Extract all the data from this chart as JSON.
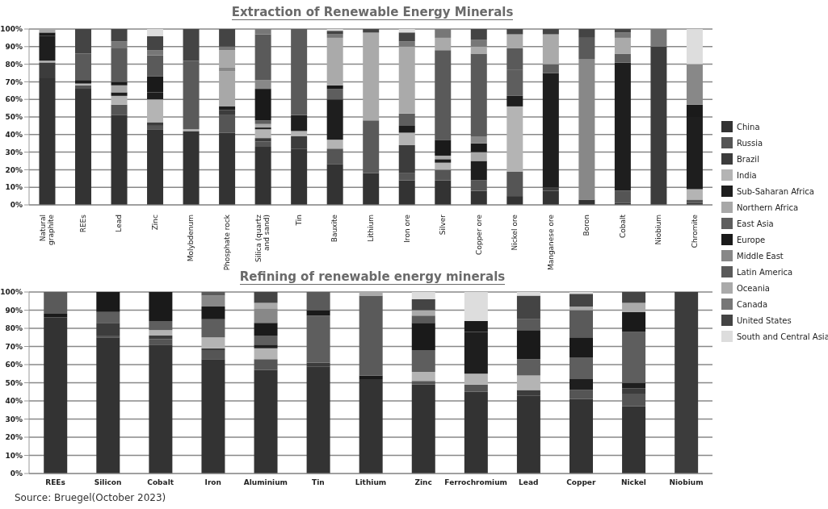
{
  "chart_data": [
    {
      "type": "bar",
      "title": "Extraction of Renewable Energy Minerals",
      "stacked": true,
      "grid": "y",
      "legend": "right",
      "categories": [
        "Natural graphite",
        "REEs",
        "Lead",
        "Zinc",
        "Molybdenum",
        "Phosphate rock",
        "Silica (quartz and sand)",
        "Tin",
        "Bauxite",
        "Lithium",
        "Iron ore",
        "Silver",
        "Copper ore",
        "Nickel ore",
        "Manganese ore",
        "Boron",
        "Cobalt",
        "Niobium",
        "Chromite"
      ],
      "ylim": [
        0,
        100
      ],
      "yticks": [
        {
          "value": 0,
          "label": "0%"
        },
        {
          "value": 10,
          "label": "10%"
        },
        {
          "value": 20,
          "label": "20%"
        },
        {
          "value": 30,
          "label": "30%"
        },
        {
          "value": 40,
          "label": "40%"
        },
        {
          "value": 50,
          "label": "50%"
        },
        {
          "value": 60,
          "label": "60%"
        },
        {
          "value": 70,
          "label": "70%"
        },
        {
          "value": 80,
          "label": "80%"
        },
        {
          "value": 90,
          "label": "90%"
        },
        {
          "value": 100,
          "label": "100%"
        }
      ],
      "series": [
        {
          "name": "China",
          "color": "#333333",
          "values": [
            72,
            66,
            51,
            43,
            42,
            41,
            33,
            32,
            23,
            18,
            14,
            14,
            8,
            5,
            8,
            3,
            1,
            0,
            1
          ]
        },
        {
          "name": "Russia",
          "color": "#555555",
          "values": [
            0,
            2,
            6,
            2,
            0,
            10,
            3,
            0,
            9,
            0,
            4,
            6,
            6,
            14,
            0,
            0,
            7,
            0,
            2
          ]
        },
        {
          "name": "Brazil",
          "color": "#3c3c3c",
          "values": [
            9,
            0,
            0,
            2,
            0,
            3,
            2,
            7,
            0,
            0,
            16,
            0,
            0,
            0,
            2,
            0,
            0,
            90,
            0
          ]
        },
        {
          "name": "India",
          "color": "#b4b4b4",
          "values": [
            1,
            1,
            5,
            13,
            1,
            0,
            5,
            3,
            5,
            0,
            7,
            4,
            0,
            37,
            0,
            0,
            0,
            0,
            6
          ]
        },
        {
          "name": "Sub-Saharan Africa",
          "color": "#1e1e1e",
          "values": [
            14,
            2,
            2,
            4,
            0,
            2,
            1,
            9,
            23,
            0,
            4,
            2,
            11,
            6,
            65,
            0,
            73,
            0,
            41
          ]
        },
        {
          "name": "Northern Africa",
          "color": "#a8a8a8",
          "values": [
            0,
            0,
            4,
            0,
            0,
            20,
            2,
            0,
            0,
            0,
            0,
            2,
            5,
            0,
            0,
            0,
            0,
            0,
            0
          ]
        },
        {
          "name": "East Asia",
          "color": "#5e5e5e",
          "values": [
            0,
            0,
            0,
            0,
            0,
            0,
            2,
            0,
            6,
            0,
            7,
            0,
            0,
            15,
            5,
            0,
            5,
            0,
            0
          ]
        },
        {
          "name": "Europe",
          "color": "#1a1a1a",
          "values": [
            2,
            0,
            2,
            9,
            0,
            0,
            18,
            0,
            2,
            0,
            0,
            9,
            5,
            0,
            0,
            0,
            0,
            0,
            7
          ]
        },
        {
          "name": "Middle East",
          "color": "#888888",
          "values": [
            0,
            0,
            0,
            0,
            0,
            2,
            5,
            0,
            0,
            0,
            0,
            0,
            4,
            0,
            0,
            80,
            0,
            0,
            23
          ]
        },
        {
          "name": "Latin America",
          "color": "#5a5a5a",
          "values": [
            0,
            15,
            19,
            12,
            39,
            0,
            26,
            49,
            0,
            30,
            0,
            51,
            47,
            12,
            0,
            12,
            0,
            0,
            0
          ]
        },
        {
          "name": "Oceania",
          "color": "#aaaaaa",
          "values": [
            2,
            0,
            0,
            0,
            0,
            10,
            0,
            0,
            27,
            50,
            38,
            7,
            4,
            8,
            17,
            0,
            9,
            0,
            0
          ]
        },
        {
          "name": "Canada",
          "color": "#777777",
          "values": [
            0,
            0,
            4,
            3,
            0,
            2,
            3,
            0,
            2,
            0,
            3,
            5,
            4,
            0,
            0,
            0,
            3,
            10,
            0
          ]
        },
        {
          "name": "United States",
          "color": "#444444",
          "values": [
            0,
            14,
            7,
            8,
            18,
            10,
            0,
            0,
            2,
            2,
            5,
            0,
            6,
            3,
            3,
            5,
            2,
            0,
            0
          ]
        },
        {
          "name": "South and Central Asia",
          "color": "#dddddd",
          "values": [
            0,
            0,
            0,
            4,
            0,
            0,
            0,
            0,
            1,
            0,
            2,
            0,
            0,
            0,
            0,
            0,
            0,
            0,
            20
          ]
        }
      ]
    },
    {
      "type": "bar",
      "title": "Refining of renewable energy minerals",
      "stacked": true,
      "grid": "y",
      "legend": "right",
      "categories": [
        "REEs",
        "Silicon",
        "Cobalt",
        "Iron",
        "Aluminium",
        "Tin",
        "Lithium",
        "Zinc",
        "Ferrochromium",
        "Lead",
        "Copper",
        "Nickel",
        "Niobium"
      ],
      "ylim": [
        0,
        100
      ],
      "yticks": [
        {
          "value": 0,
          "label": "0%"
        },
        {
          "value": 10,
          "label": "10%"
        },
        {
          "value": 20,
          "label": "20%"
        },
        {
          "value": 30,
          "label": "30%"
        },
        {
          "value": 40,
          "label": "40%"
        },
        {
          "value": 50,
          "label": "50%"
        },
        {
          "value": 60,
          "label": "60%"
        },
        {
          "value": 70,
          "label": "70%"
        },
        {
          "value": 80,
          "label": "80%"
        },
        {
          "value": 90,
          "label": "90%"
        },
        {
          "value": 100,
          "label": "100%"
        }
      ],
      "annotations": [
        "Source: Bruegel(October 2023)"
      ],
      "series": [
        {
          "name": "China",
          "color": "#333333",
          "values": [
            86,
            75,
            71,
            63,
            57,
            59,
            52,
            49,
            45,
            43,
            41,
            37,
            0
          ]
        },
        {
          "name": "Russia",
          "color": "#555555",
          "values": [
            0,
            1,
            3,
            5,
            6,
            0,
            0,
            2,
            4,
            0,
            5,
            7,
            0
          ]
        },
        {
          "name": "Brazil",
          "color": "#3c3c3c",
          "values": [
            0,
            7,
            2,
            1,
            0,
            2,
            0,
            0,
            0,
            3,
            0,
            3,
            100
          ]
        },
        {
          "name": "India",
          "color": "#b4b4b4",
          "values": [
            0,
            0,
            3,
            6,
            6,
            0,
            0,
            5,
            6,
            8,
            0,
            0,
            0
          ]
        },
        {
          "name": "Sub-Saharan Africa",
          "color": "#1e1e1e",
          "values": [
            0,
            0,
            0,
            0,
            2,
            0,
            0,
            0,
            23,
            0,
            6,
            3,
            0
          ]
        },
        {
          "name": "East Asia",
          "color": "#5e5e5e",
          "values": [
            0,
            6,
            5,
            10,
            5,
            26,
            0,
            12,
            0,
            9,
            12,
            28,
            0
          ]
        },
        {
          "name": "Europe",
          "color": "#1a1a1a",
          "values": [
            2,
            11,
            16,
            7,
            7,
            3,
            2,
            15,
            6,
            16,
            11,
            11,
            0
          ]
        },
        {
          "name": "Middle East",
          "color": "#888888",
          "values": [
            0,
            0,
            0,
            6,
            8,
            0,
            0,
            0,
            0,
            0,
            0,
            0,
            0
          ]
        },
        {
          "name": "Latin America",
          "color": "#5a5a5a",
          "values": [
            12,
            0,
            0,
            2,
            0,
            10,
            44,
            4,
            0,
            6,
            15,
            0,
            0
          ]
        },
        {
          "name": "Oceania",
          "color": "#aaaaaa",
          "values": [
            0,
            0,
            0,
            0,
            3,
            0,
            2,
            3,
            0,
            0,
            2,
            5,
            0
          ]
        },
        {
          "name": "United States",
          "color": "#444444",
          "values": [
            0,
            0,
            0,
            0,
            6,
            0,
            0,
            6,
            0,
            13,
            7,
            6,
            0
          ]
        },
        {
          "name": "South and Central Asia",
          "color": "#dddddd",
          "values": [
            0,
            0,
            0,
            0,
            0,
            0,
            0,
            4,
            16,
            2,
            1,
            0,
            0
          ]
        }
      ]
    }
  ]
}
